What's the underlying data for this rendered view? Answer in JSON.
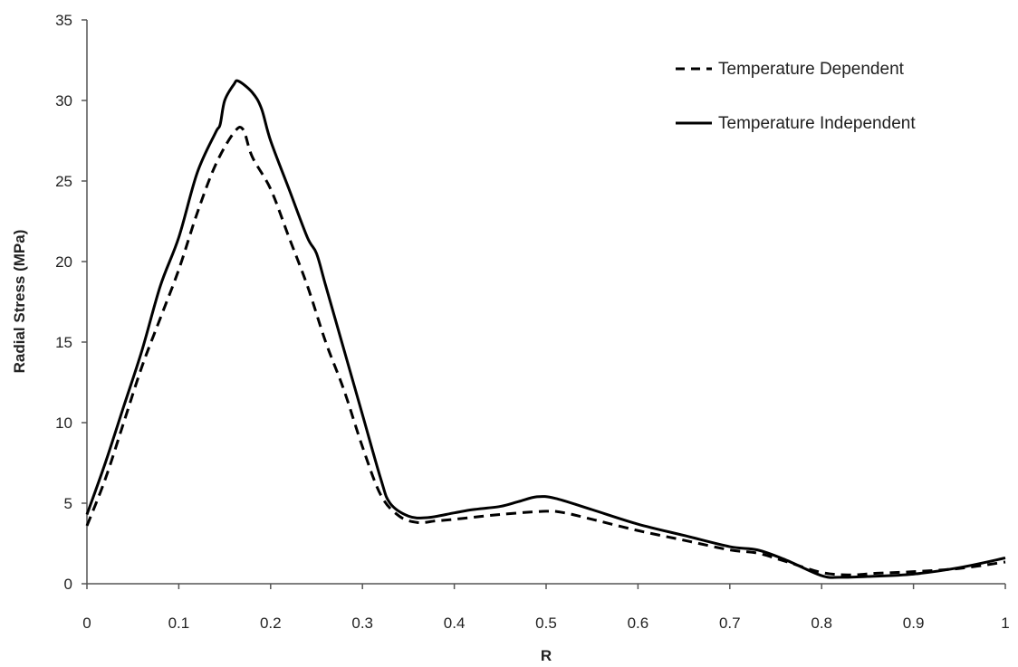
{
  "chart_data": {
    "type": "line",
    "title": "",
    "xlabel": "R",
    "ylabel": "Radial Stress (MPa)",
    "xlim": [
      0,
      1
    ],
    "ylim": [
      0,
      35
    ],
    "x_ticks": [
      "0",
      "0.1",
      "0.2",
      "0.3",
      "0.4",
      "0.5",
      "0.6",
      "0.7",
      "0.8",
      "0.9",
      "1"
    ],
    "y_ticks": [
      "0",
      "5",
      "10",
      "15",
      "20",
      "25",
      "30",
      "35"
    ],
    "grid": false,
    "legend_position": "top-right",
    "series": [
      {
        "name": "Temperature Dependent",
        "style": "dashed",
        "color": "#000000",
        "points": [
          [
            0,
            3.6
          ],
          [
            0.02,
            6.5
          ],
          [
            0.04,
            10
          ],
          [
            0.06,
            13.5
          ],
          [
            0.08,
            16.5
          ],
          [
            0.1,
            19.5
          ],
          [
            0.12,
            23
          ],
          [
            0.14,
            26
          ],
          [
            0.16,
            28
          ],
          [
            0.17,
            28.2
          ],
          [
            0.18,
            26.5
          ],
          [
            0.2,
            24.5
          ],
          [
            0.22,
            21.5
          ],
          [
            0.24,
            18.5
          ],
          [
            0.26,
            15
          ],
          [
            0.28,
            12
          ],
          [
            0.3,
            8.5
          ],
          [
            0.32,
            5.5
          ],
          [
            0.34,
            4.2
          ],
          [
            0.36,
            3.8
          ],
          [
            0.38,
            3.9
          ],
          [
            0.4,
            4.0
          ],
          [
            0.45,
            4.3
          ],
          [
            0.5,
            4.5
          ],
          [
            0.52,
            4.4
          ],
          [
            0.55,
            4.0
          ],
          [
            0.6,
            3.3
          ],
          [
            0.65,
            2.7
          ],
          [
            0.7,
            2.1
          ],
          [
            0.73,
            1.9
          ],
          [
            0.76,
            1.4
          ],
          [
            0.8,
            0.7
          ],
          [
            0.83,
            0.55
          ],
          [
            0.86,
            0.65
          ],
          [
            0.9,
            0.75
          ],
          [
            0.95,
            0.95
          ],
          [
            1.0,
            1.35
          ]
        ]
      },
      {
        "name": "Temperature Independent",
        "style": "solid",
        "color": "#000000",
        "points": [
          [
            0,
            4.3
          ],
          [
            0.02,
            7.5
          ],
          [
            0.04,
            11
          ],
          [
            0.06,
            14.5
          ],
          [
            0.08,
            18.5
          ],
          [
            0.1,
            21.5
          ],
          [
            0.12,
            25.5
          ],
          [
            0.14,
            28
          ],
          [
            0.145,
            28.5
          ],
          [
            0.15,
            30
          ],
          [
            0.16,
            31
          ],
          [
            0.165,
            31.2
          ],
          [
            0.18,
            30.5
          ],
          [
            0.19,
            29.5
          ],
          [
            0.2,
            27.5
          ],
          [
            0.22,
            24.5
          ],
          [
            0.24,
            21.5
          ],
          [
            0.25,
            20.5
          ],
          [
            0.26,
            18.5
          ],
          [
            0.28,
            14.5
          ],
          [
            0.3,
            10.5
          ],
          [
            0.32,
            6.5
          ],
          [
            0.33,
            5.0
          ],
          [
            0.35,
            4.2
          ],
          [
            0.37,
            4.1
          ],
          [
            0.4,
            4.4
          ],
          [
            0.42,
            4.6
          ],
          [
            0.45,
            4.8
          ],
          [
            0.47,
            5.1
          ],
          [
            0.49,
            5.4
          ],
          [
            0.51,
            5.3
          ],
          [
            0.55,
            4.6
          ],
          [
            0.6,
            3.7
          ],
          [
            0.65,
            3.0
          ],
          [
            0.7,
            2.3
          ],
          [
            0.73,
            2.1
          ],
          [
            0.76,
            1.5
          ],
          [
            0.8,
            0.5
          ],
          [
            0.82,
            0.4
          ],
          [
            0.85,
            0.45
          ],
          [
            0.9,
            0.6
          ],
          [
            0.95,
            1.0
          ],
          [
            1.0,
            1.6
          ]
        ]
      }
    ]
  }
}
